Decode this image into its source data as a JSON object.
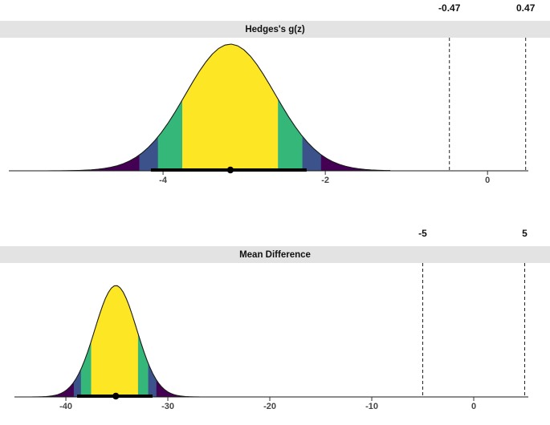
{
  "chart_data": [
    {
      "type": "area",
      "title": "Hedges's g(z)",
      "xlim": [
        -6.01,
        0.77
      ],
      "x_ticks": [
        -4,
        -2,
        0
      ],
      "x_tick_labels": [
        "-4",
        "-2",
        "0"
      ],
      "rope": [
        -0.47,
        0.47
      ],
      "rope_labels": [
        "-0.47",
        "0.47"
      ],
      "distribution": {
        "shape": "normal",
        "mean": -3.17,
        "sd": 0.55
      },
      "curve_range": [
        -5.9,
        -1.2
      ],
      "point_estimate": -3.17,
      "ci": [
        -4.15,
        -2.23
      ],
      "fill_segments": [
        {
          "from": -5.9,
          "to": -4.29,
          "color": "#440154"
        },
        {
          "from": -4.29,
          "to": -4.06,
          "color": "#3B528B"
        },
        {
          "from": -4.06,
          "to": -3.76,
          "color": "#35B779"
        },
        {
          "from": -3.76,
          "to": -2.58,
          "color": "#FDE725"
        },
        {
          "from": -2.58,
          "to": -2.28,
          "color": "#35B779"
        },
        {
          "from": -2.28,
          "to": -2.05,
          "color": "#3B528B"
        },
        {
          "from": -2.05,
          "to": -1.2,
          "color": "#440154"
        }
      ],
      "grid": false,
      "legend": false
    },
    {
      "type": "area",
      "title": "Mean Difference",
      "xlim": [
        -46.46,
        7.48
      ],
      "x_ticks": [
        -40,
        -30,
        -20,
        -10,
        0
      ],
      "x_tick_labels": [
        "-40",
        "-30",
        "-20",
        "-10",
        "0"
      ],
      "rope": [
        -5,
        5
      ],
      "rope_labels": [
        "-5",
        "5"
      ],
      "distribution": {
        "shape": "normal",
        "mean": -35.1,
        "sd": 2.05
      },
      "curve_range": [
        -44,
        -26.5
      ],
      "point_estimate": -35.1,
      "ci": [
        -38.9,
        -31.5
      ],
      "fill_segments": [
        {
          "from": -44,
          "to": -39.2,
          "color": "#440154"
        },
        {
          "from": -39.2,
          "to": -38.5,
          "color": "#3B528B"
        },
        {
          "from": -38.5,
          "to": -37.5,
          "color": "#35B779"
        },
        {
          "from": -37.5,
          "to": -32.9,
          "color": "#FDE725"
        },
        {
          "from": -32.9,
          "to": -31.9,
          "color": "#35B779"
        },
        {
          "from": -31.9,
          "to": -31.1,
          "color": "#3B528B"
        },
        {
          "from": -31.1,
          "to": -26.5,
          "color": "#440154"
        }
      ],
      "grid": false,
      "legend": false
    }
  ],
  "colors": {
    "strip_background": "#E3E3E3",
    "axis_text": "#454545",
    "rope_label_text": "#111111",
    "curve_outline": "#1A1A1A",
    "point_interval": "#000000"
  }
}
